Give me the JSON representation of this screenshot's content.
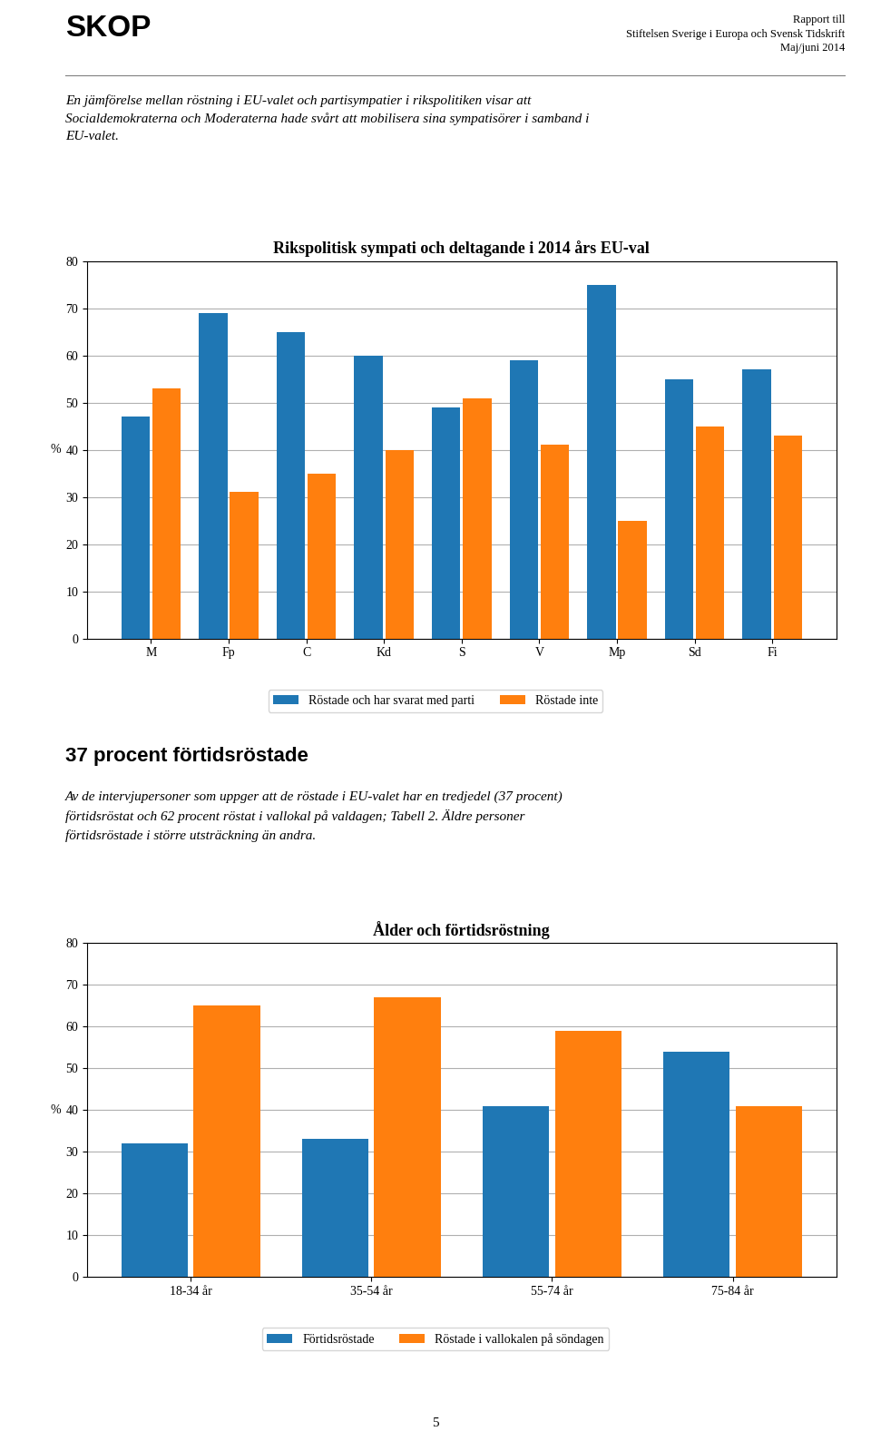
{
  "title": "SKOP",
  "subtitle": "Rapport till\nStiftelsen Sverige i Europa och Svensk Tidskrift\nMaj/juni 2014",
  "annotations": [
    "En jämförelse mellan röstning i EU-valet och partisympatier i rikspolitiken visar att\nSocialdemokraterna och Moderaterna hade svårt att mobilisera sina sympatisörer i samband i\nEU-valet.",
    "37 procent förtidsröstade",
    "Av de intervjupersoner som uppger att de röstade i EU-valet har en tredjedel (37 procent)\nförtidsröstat och 62 procent röstat i vallokal på valdagen; Tabell 2. Äldre personer\nförtidsröstade i större utsträckning än andra.",
    "5"
  ],
  "chart_data": [
    {
      "type": "bar",
      "title": "Rikspolitisk sympati och deltagande i 2014 års EU-val",
      "ylabel": "%",
      "categories": [
        "M",
        "Fp",
        "C",
        "Kd",
        "S",
        "V",
        "Mp",
        "Sd",
        "Fi"
      ],
      "series": [
        {
          "name": "Röstade och har svarat med parti",
          "values": [
            47,
            69,
            65,
            60,
            49,
            59,
            75,
            55,
            57
          ]
        },
        {
          "name": "Röstade inte",
          "values": [
            53,
            31,
            35,
            40,
            51,
            41,
            25,
            45,
            43
          ]
        }
      ],
      "ylim": [
        0,
        80
      ],
      "yticks": [
        0,
        10,
        20,
        30,
        40,
        50,
        60,
        70,
        80
      ],
      "grid": true,
      "legend": "lower center"
    },
    {
      "type": "bar",
      "title": "Ålder och förtidsröstning",
      "ylabel": "%",
      "categories": [
        "18-34 år",
        "35-54 år",
        "55-74 år",
        "75-84 år"
      ],
      "series": [
        {
          "name": "Förtidsröstade",
          "values": [
            32,
            33,
            41,
            54
          ]
        },
        {
          "name": "Röstade i vallokalen på söndagen",
          "values": [
            65,
            67,
            59,
            41
          ]
        }
      ],
      "ylim": [
        0,
        80
      ],
      "yticks": [
        0,
        10,
        20,
        30,
        40,
        50,
        60,
        70,
        80
      ],
      "grid": true,
      "legend": "lower center"
    }
  ]
}
